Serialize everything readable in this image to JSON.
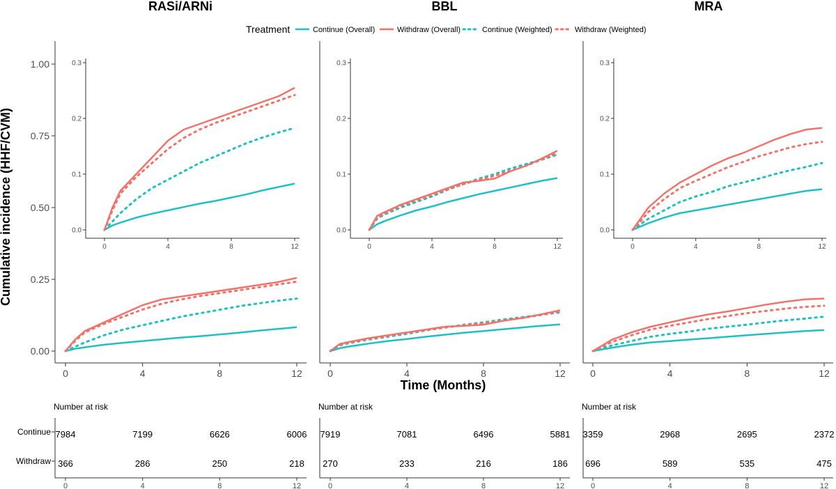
{
  "figure": {
    "y_axis_label": "Cumulative incidence (HHF/CVM)",
    "x_axis_label": "Time (Months)",
    "legend_title": "Treatment",
    "risk_title": "Number at risk",
    "risk_groups": [
      "Continue",
      "Withdraw"
    ]
  },
  "colors": {
    "continue": "#1FBFC3",
    "withdraw": "#F0736B"
  },
  "chart_data": [
    {
      "type": "line",
      "title": "RASi/ARNi",
      "legend": [
        "Continue (Overall)",
        "Withdraw (Overall)",
        "Continue (Weighted)",
        "Withdraw (Weighted)"
      ],
      "main": {
        "xlabel": "Time (Months)",
        "ylabel": "Cumulative incidence (HHF/CVM)",
        "xlim": [
          0,
          12
        ],
        "ylim": [
          0,
          1
        ],
        "xticks": [
          0,
          4,
          8,
          12
        ],
        "yticks": [
          0,
          0.25,
          0.5,
          0.75,
          1.0
        ],
        "ytick_labels": [
          "0.00",
          "0.25",
          "0.50",
          "0.75",
          "1.00"
        ]
      },
      "inset": {
        "xlim": [
          0,
          12
        ],
        "ylim": [
          0,
          0.3
        ],
        "xticks": [
          0,
          4,
          8,
          12
        ],
        "yticks": [
          0,
          0.1,
          0.2,
          0.3
        ],
        "ytick_labels": [
          "0.0",
          "0.1",
          "0.2",
          "0.3"
        ]
      },
      "x": [
        0,
        0.5,
        1,
        2,
        3,
        4,
        5,
        6,
        7,
        8,
        9,
        10,
        11,
        12
      ],
      "series": [
        {
          "name": "Continue (Overall)",
          "values": [
            0,
            0.008,
            0.013,
            0.022,
            0.029,
            0.035,
            0.041,
            0.047,
            0.052,
            0.058,
            0.064,
            0.071,
            0.077,
            0.083
          ]
        },
        {
          "name": "Withdraw (Overall)",
          "values": [
            0,
            0.04,
            0.07,
            0.1,
            0.13,
            0.16,
            0.18,
            0.19,
            0.2,
            0.21,
            0.22,
            0.23,
            0.24,
            0.255
          ]
        },
        {
          "name": "Continue (Weighted)",
          "values": [
            0,
            0.015,
            0.03,
            0.055,
            0.075,
            0.09,
            0.105,
            0.12,
            0.132,
            0.144,
            0.156,
            0.166,
            0.175,
            0.183
          ]
        },
        {
          "name": "Withdraw (Weighted)",
          "values": [
            0,
            0.035,
            0.065,
            0.095,
            0.12,
            0.145,
            0.165,
            0.18,
            0.192,
            0.202,
            0.212,
            0.222,
            0.232,
            0.242
          ]
        }
      ],
      "risk_table": {
        "times": [
          0,
          4,
          8,
          12
        ],
        "continue": [
          7984,
          7199,
          6626,
          6006
        ],
        "withdraw": [
          366,
          286,
          250,
          218
        ]
      }
    },
    {
      "type": "line",
      "title": "BBL",
      "legend": [
        "Continue (Overall)",
        "Withdraw (Overall)",
        "Continue (Weighted)",
        "Withdraw (Weighted)"
      ],
      "main": {
        "xlabel": "Time (Months)",
        "ylabel": "Cumulative incidence (HHF/CVM)",
        "xlim": [
          0,
          12
        ],
        "ylim": [
          0,
          1
        ],
        "xticks": [
          0,
          4,
          8,
          12
        ],
        "yticks": [
          0,
          0.25,
          0.5,
          0.75,
          1.0
        ],
        "ytick_labels": [
          "0.00",
          "0.25",
          "0.50",
          "0.75",
          "1.00"
        ]
      },
      "inset": {
        "xlim": [
          0,
          12
        ],
        "ylim": [
          0,
          0.3
        ],
        "xticks": [
          0,
          4,
          8,
          12
        ],
        "yticks": [
          0,
          0.1,
          0.2,
          0.3
        ],
        "ytick_labels": [
          "0.0",
          "0.1",
          "0.2",
          "0.3"
        ]
      },
      "x": [
        0,
        0.5,
        1,
        2,
        3,
        4,
        5,
        6,
        7,
        8,
        9,
        10,
        11,
        12
      ],
      "series": [
        {
          "name": "Continue (Overall)",
          "values": [
            0,
            0.01,
            0.016,
            0.026,
            0.035,
            0.042,
            0.05,
            0.057,
            0.064,
            0.07,
            0.076,
            0.082,
            0.088,
            0.093
          ]
        },
        {
          "name": "Withdraw (Overall)",
          "values": [
            0,
            0.025,
            0.032,
            0.045,
            0.055,
            0.065,
            0.075,
            0.085,
            0.088,
            0.092,
            0.105,
            0.115,
            0.128,
            0.142
          ]
        },
        {
          "name": "Continue (Weighted)",
          "values": [
            0,
            0.02,
            0.028,
            0.04,
            0.05,
            0.06,
            0.072,
            0.082,
            0.092,
            0.1,
            0.11,
            0.118,
            0.126,
            0.135
          ]
        },
        {
          "name": "Withdraw (Weighted)",
          "values": [
            0,
            0.022,
            0.03,
            0.043,
            0.053,
            0.063,
            0.073,
            0.082,
            0.09,
            0.097,
            0.106,
            0.115,
            0.126,
            0.138
          ]
        }
      ],
      "risk_table": {
        "times": [
          0,
          4,
          8,
          12
        ],
        "continue": [
          7919,
          7081,
          6496,
          5881
        ],
        "withdraw": [
          270,
          233,
          216,
          186
        ]
      }
    },
    {
      "type": "line",
      "title": "MRA",
      "legend": [
        "Continue (Overall)",
        "Withdraw (Overall)",
        "Continue (Weighted)",
        "Withdraw (Weighted)"
      ],
      "main": {
        "xlabel": "Time (Months)",
        "ylabel": "Cumulative incidence (HHF/CVM)",
        "xlim": [
          0,
          12
        ],
        "ylim": [
          0,
          1
        ],
        "xticks": [
          0,
          4,
          8,
          12
        ],
        "yticks": [
          0,
          0.25,
          0.5,
          0.75,
          1.0
        ],
        "ytick_labels": [
          "0.00",
          "0.25",
          "0.50",
          "0.75",
          "1.00"
        ]
      },
      "inset": {
        "xlim": [
          0,
          12
        ],
        "ylim": [
          0,
          0.3
        ],
        "xticks": [
          0,
          4,
          8,
          12
        ],
        "yticks": [
          0,
          0.1,
          0.2,
          0.3
        ],
        "ytick_labels": [
          "0.0",
          "0.1",
          "0.2",
          "0.3"
        ]
      },
      "x": [
        0,
        0.5,
        1,
        2,
        3,
        4,
        5,
        6,
        7,
        8,
        9,
        10,
        11,
        12
      ],
      "series": [
        {
          "name": "Continue (Overall)",
          "values": [
            0,
            0.006,
            0.012,
            0.022,
            0.03,
            0.035,
            0.04,
            0.045,
            0.05,
            0.055,
            0.06,
            0.065,
            0.07,
            0.073
          ]
        },
        {
          "name": "Withdraw (Overall)",
          "values": [
            0,
            0.02,
            0.04,
            0.065,
            0.085,
            0.1,
            0.115,
            0.128,
            0.138,
            0.15,
            0.162,
            0.172,
            0.18,
            0.183
          ]
        },
        {
          "name": "Continue (Weighted)",
          "values": [
            0,
            0.01,
            0.02,
            0.035,
            0.05,
            0.06,
            0.068,
            0.078,
            0.085,
            0.092,
            0.1,
            0.107,
            0.113,
            0.12
          ]
        },
        {
          "name": "Withdraw (Weighted)",
          "values": [
            0,
            0.015,
            0.032,
            0.055,
            0.075,
            0.088,
            0.1,
            0.112,
            0.122,
            0.132,
            0.14,
            0.148,
            0.154,
            0.158
          ]
        }
      ],
      "risk_table": {
        "times": [
          0,
          4,
          8,
          12
        ],
        "continue": [
          3359,
          2968,
          2695,
          2372
        ],
        "withdraw": [
          696,
          589,
          535,
          475
        ]
      }
    }
  ]
}
